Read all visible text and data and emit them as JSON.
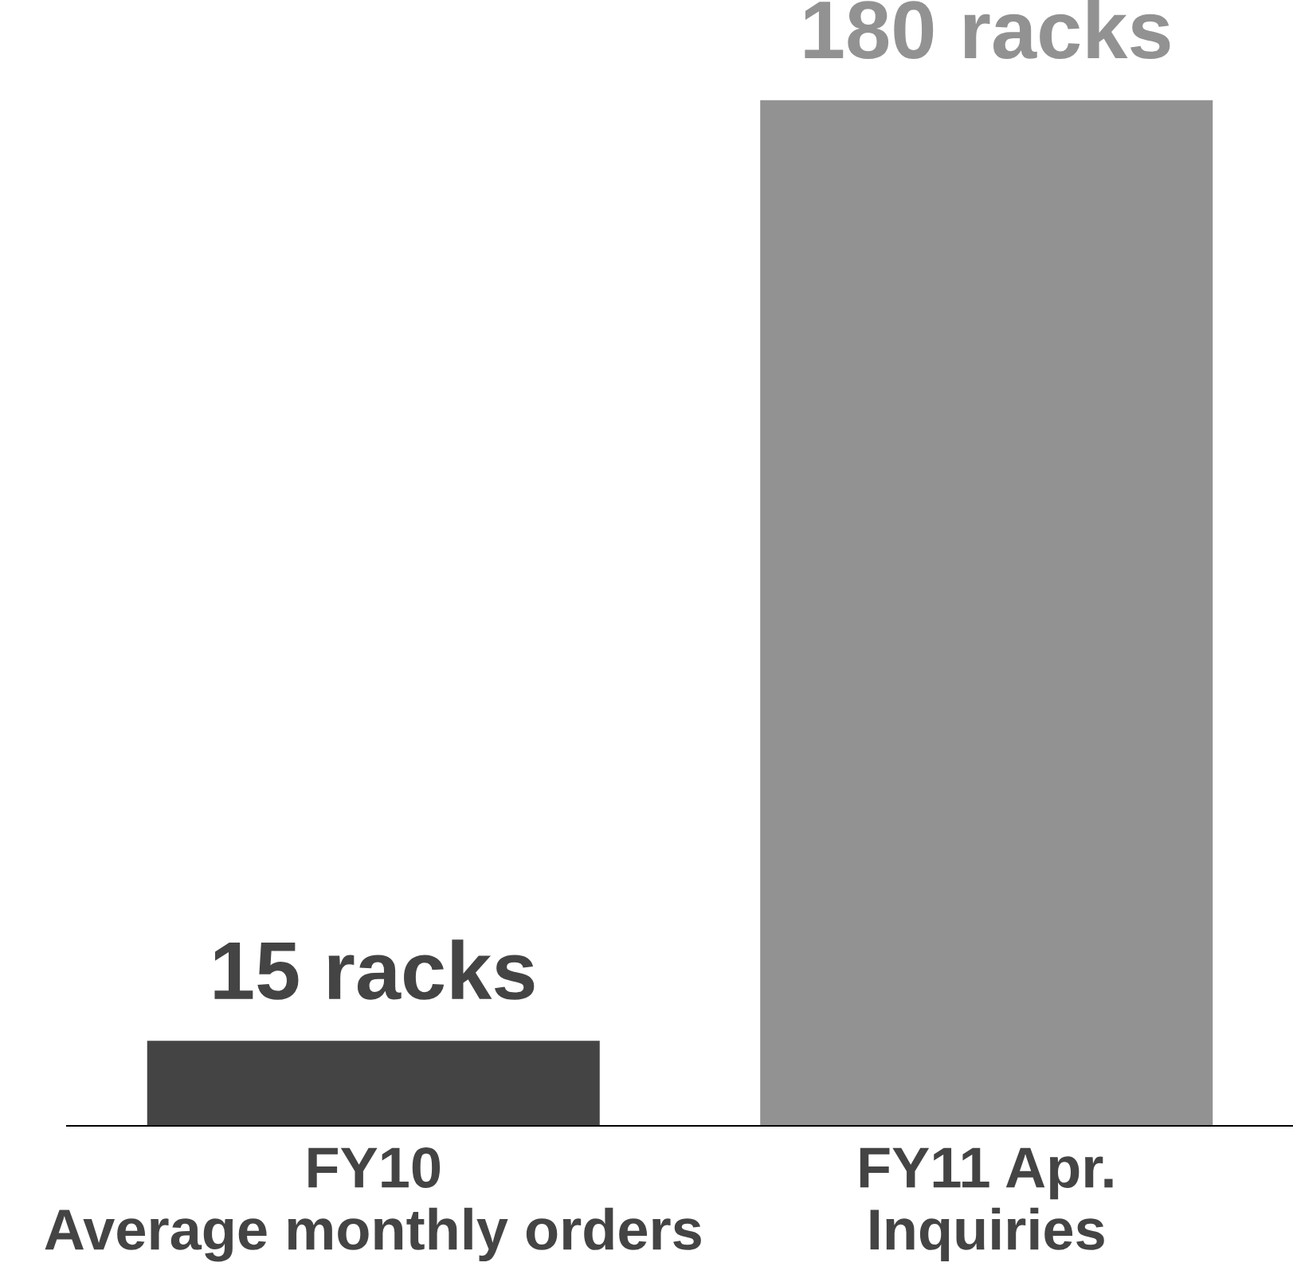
{
  "chart_data": {
    "type": "bar",
    "categories": [
      "FY10\nAverage monthly orders",
      "FY11 Apr.\nInquiries"
    ],
    "values": [
      15,
      180
    ],
    "colors": [
      "#444444",
      "#929292"
    ],
    "value_labels": [
      "15 racks",
      "180 racks"
    ],
    "tick_labels": "x",
    "grid": false,
    "legend": false
  }
}
